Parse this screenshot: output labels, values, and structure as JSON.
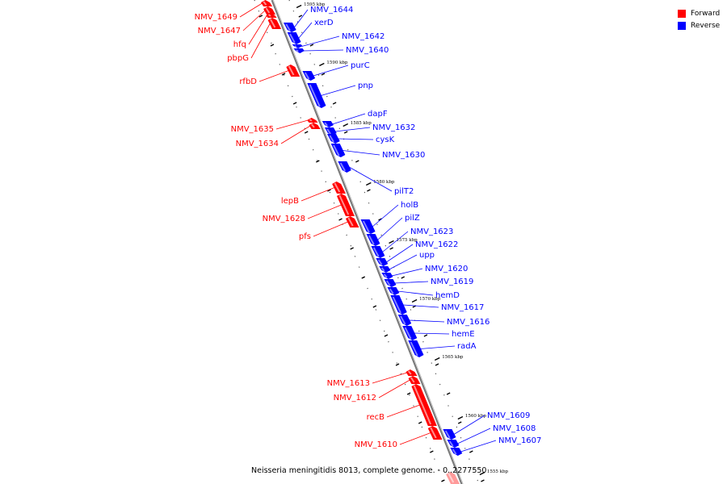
{
  "genome_caption": "Neisseria meningitidis 8013, complete genome. - 0..2277550",
  "legend": [
    {
      "label": "Forward",
      "color": "#ff0000"
    },
    {
      "label": "Reverse",
      "color": "#0000ff"
    }
  ],
  "colors": {
    "forward": "#ff0000",
    "reverse": "#0000ff",
    "backbone": "#888888"
  },
  "ticks": [
    {
      "label": "1595 kbp",
      "pos_kbp": 1595
    },
    {
      "label": "1590 kbp",
      "pos_kbp": 1590
    },
    {
      "label": "1585 kbp",
      "pos_kbp": 1585
    },
    {
      "label": "1580 kbp",
      "pos_kbp": 1580
    },
    {
      "label": "1575 kbp",
      "pos_kbp": 1575
    },
    {
      "label": "1570 kbp",
      "pos_kbp": 1570
    },
    {
      "label": "1565 kbp",
      "pos_kbp": 1565
    },
    {
      "label": "1560 kbp",
      "pos_kbp": 1560
    },
    {
      "label": "1555 kbp",
      "pos_kbp": 1555
    }
  ],
  "forward_genes": [
    "NMV_1649",
    "NMV_1647",
    "hfq",
    "pbpG",
    "rfbD",
    "NMV_1635",
    "NMV_1634",
    "lepB",
    "NMV_1628",
    "pfs",
    "NMV_1613",
    "NMV_1612",
    "recB",
    "NMV_1610"
  ],
  "reverse_genes": [
    "NMV_1644",
    "xerD",
    "NMV_1642",
    "NMV_1640",
    "purC",
    "pnp",
    "dapF",
    "NMV_1632",
    "cysK",
    "NMV_1630",
    "pilT2",
    "holB",
    "pilZ",
    "NMV_1623",
    "NMV_1622",
    "upp",
    "NMV_1620",
    "NMV_1619",
    "hemD",
    "NMV_1617",
    "NMV_1616",
    "hemE",
    "radA",
    "NMV_1609",
    "NMV_1608",
    "NMV_1607"
  ]
}
